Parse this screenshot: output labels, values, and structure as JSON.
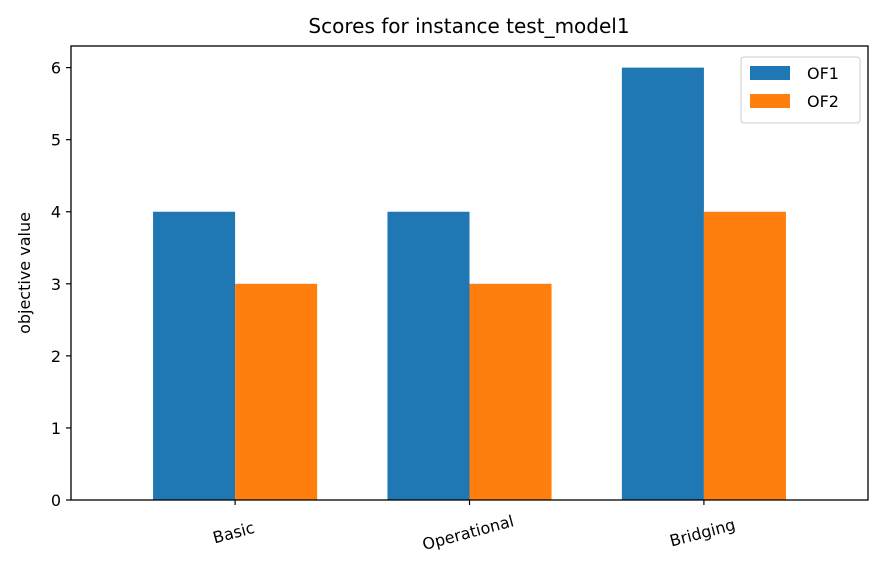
{
  "chart_data": {
    "type": "bar",
    "title": "Scores for instance test_model1",
    "xlabel": "",
    "ylabel": "objective value",
    "categories": [
      "Basic",
      "Operational",
      "Bridging"
    ],
    "series": [
      {
        "name": "OF1",
        "values": [
          4,
          4,
          6
        ],
        "color": "#1f77b4"
      },
      {
        "name": "OF2",
        "values": [
          3,
          3,
          4
        ],
        "color": "#ff7f0e"
      }
    ],
    "ylim": [
      0,
      6.3
    ],
    "yticks": [
      0,
      1,
      2,
      3,
      4,
      5,
      6
    ],
    "grid": false,
    "legend_position": "top-right",
    "xtick_rotation": "slanted"
  }
}
